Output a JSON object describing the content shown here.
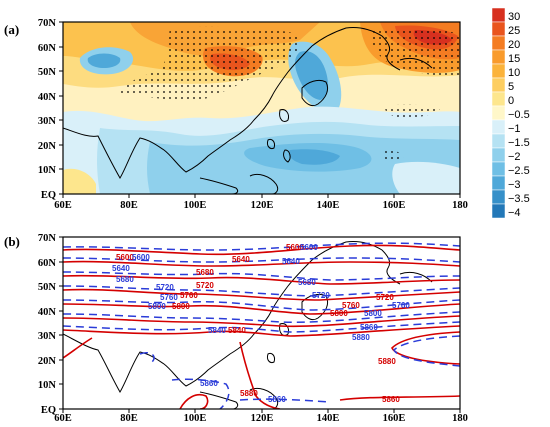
{
  "figure": {
    "panels": [
      {
        "label": "(a)",
        "type": "shaded anomaly map with stippling",
        "lon_ticks": [
          "60E",
          "80E",
          "100E",
          "120E",
          "140E",
          "160E",
          "180"
        ],
        "lat_ticks": [
          "EQ",
          "10N",
          "20N",
          "30N",
          "40N",
          "50N",
          "60N",
          "70N"
        ],
        "colorbar": {
          "levels": [
            "30",
            "25",
            "20",
            "15",
            "10",
            "5",
            "0",
            "−0.5",
            "−1",
            "−1.5",
            "−2",
            "−2.5",
            "−3",
            "−3.5",
            "−4"
          ],
          "colors": [
            "#d7301f",
            "#e9541d",
            "#f47c22",
            "#f99b2c",
            "#fbb33b",
            "#fdce61",
            "#fde68d",
            "#fff7c9",
            "#d9f0f9",
            "#b5e2f3",
            "#8fd0ec",
            "#6fbfe5",
            "#4fa8d9",
            "#3690c9",
            "#2378b8"
          ]
        }
      },
      {
        "label": "(b)",
        "type": "contour map",
        "lon_ticks": [
          "60E",
          "80E",
          "100E",
          "120E",
          "140E",
          "160E",
          "180"
        ],
        "lat_ticks": [
          "EQ",
          "10N",
          "20N",
          "30N",
          "40N",
          "50N",
          "60N",
          "70N"
        ],
        "contour_colors": {
          "red": "#d40000",
          "blue": "#2b3cd8"
        },
        "contour_labels": [
          {
            "text": "5600",
            "color": "red"
          },
          {
            "text": "5600",
            "color": "blue"
          },
          {
            "text": "5600",
            "color": "red"
          },
          {
            "text": "5600",
            "color": "blue"
          },
          {
            "text": "5640",
            "color": "red"
          },
          {
            "text": "5640",
            "color": "blue"
          },
          {
            "text": "5640",
            "color": "blue"
          },
          {
            "text": "5680",
            "color": "red"
          },
          {
            "text": "5680",
            "color": "blue"
          },
          {
            "text": "5680",
            "color": "blue"
          },
          {
            "text": "5720",
            "color": "red"
          },
          {
            "text": "5720",
            "color": "blue"
          },
          {
            "text": "5720",
            "color": "blue"
          },
          {
            "text": "5720",
            "color": "red"
          },
          {
            "text": "5760",
            "color": "blue"
          },
          {
            "text": "5760",
            "color": "red"
          },
          {
            "text": "5760",
            "color": "blue"
          },
          {
            "text": "5760",
            "color": "red"
          },
          {
            "text": "5800",
            "color": "blue"
          },
          {
            "text": "5800",
            "color": "red"
          },
          {
            "text": "5800",
            "color": "red"
          },
          {
            "text": "5800",
            "color": "blue"
          },
          {
            "text": "5840",
            "color": "blue"
          },
          {
            "text": "5840",
            "color": "red"
          },
          {
            "text": "5860",
            "color": "blue"
          },
          {
            "text": "5880",
            "color": "blue"
          },
          {
            "text": "5880",
            "color": "red"
          },
          {
            "text": "5860",
            "color": "blue"
          },
          {
            "text": "5880",
            "color": "red"
          },
          {
            "text": "5860",
            "color": "blue"
          },
          {
            "text": "5860",
            "color": "red"
          }
        ]
      }
    ]
  }
}
